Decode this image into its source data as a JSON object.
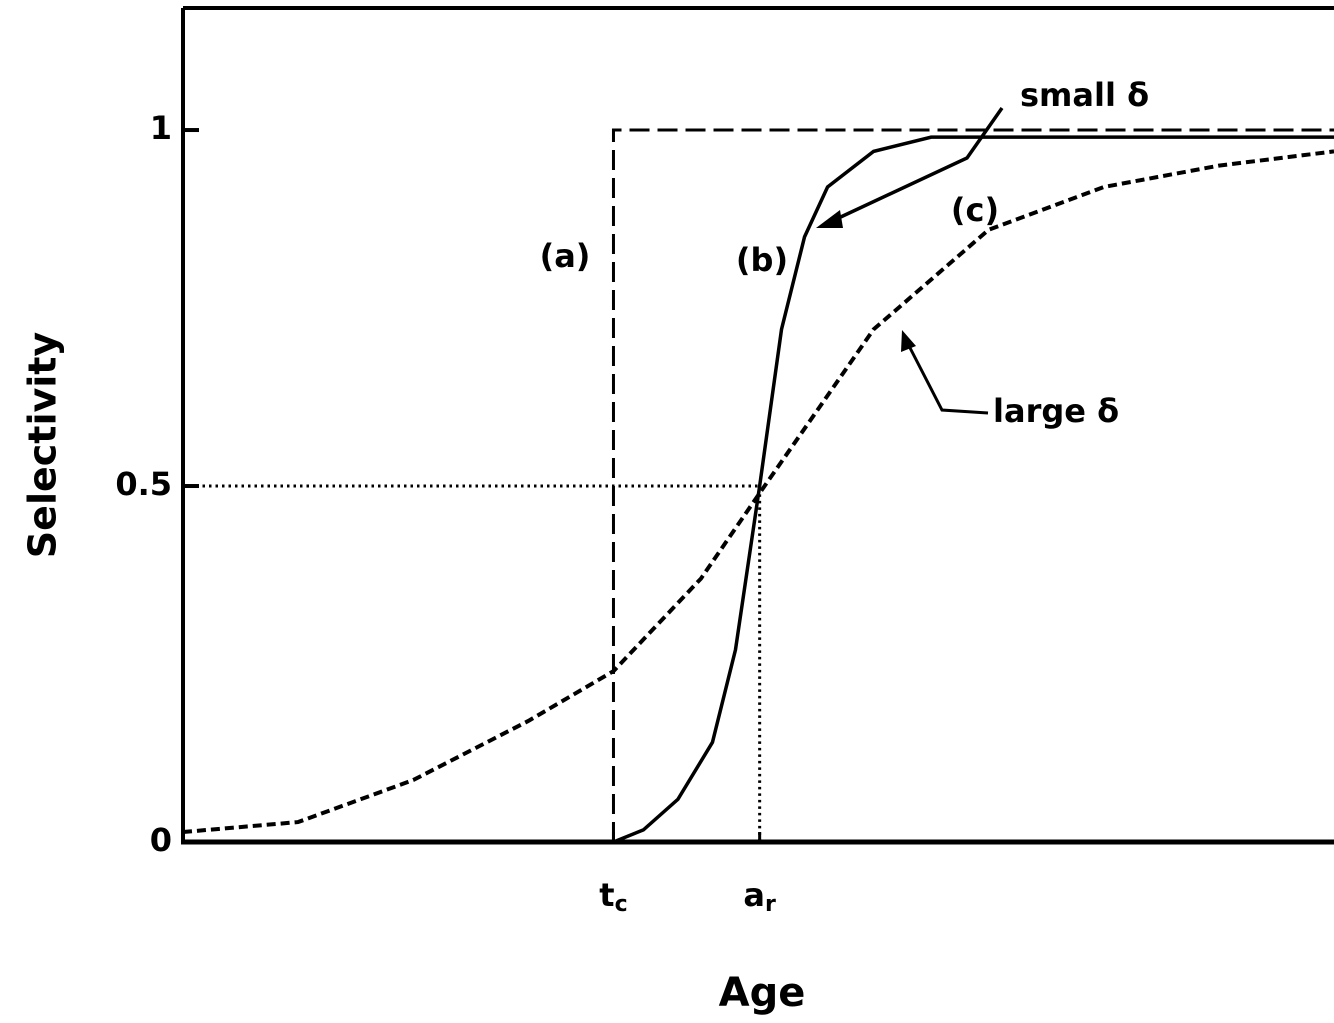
{
  "chart_data": {
    "type": "line",
    "xlabel": "Age",
    "ylabel": "Selectivity",
    "xlim": [
      0,
      10
    ],
    "ylim": [
      0,
      1.17
    ],
    "yticks": [
      0,
      0.5,
      1
    ],
    "xticks": [
      {
        "value": 3.74,
        "label": "t",
        "sub": "c"
      },
      {
        "value": 5.01,
        "label": "a",
        "sub": "r"
      }
    ],
    "grid": false,
    "series": [
      {
        "color": "#000000",
        "style": "long-dash",
        "x": [
          3.74,
          3.74,
          10
        ],
        "values": [
          0,
          1,
          1
        ]
      },
      {
        "color": "#000000",
        "style": "solid",
        "x": [
          3.74,
          4.0,
          4.3,
          4.6,
          4.8,
          5.01,
          5.2,
          5.4,
          5.6,
          6.0,
          6.5,
          10
        ],
        "values": [
          0,
          0.017,
          0.06,
          0.14,
          0.27,
          0.5,
          0.72,
          0.85,
          0.92,
          0.97,
          0.99,
          0.99
        ]
      },
      {
        "color": "#000000",
        "style": "short-dash",
        "x": [
          0,
          1,
          2,
          3,
          3.74,
          4.5,
          5.01,
          6,
          7,
          8,
          9,
          10
        ],
        "values": [
          0.014,
          0.028,
          0.087,
          0.17,
          0.24,
          0.37,
          0.49,
          0.72,
          0.86,
          0.92,
          0.95,
          0.97
        ]
      },
      {
        "color": "#000000",
        "style": "dotted",
        "x": [
          0,
          5.01,
          5.01
        ],
        "values": [
          0.5,
          0.5,
          0
        ]
      }
    ],
    "annotations": [
      "(a)",
      "(b)",
      "(c)",
      "small δ",
      "large δ"
    ]
  }
}
